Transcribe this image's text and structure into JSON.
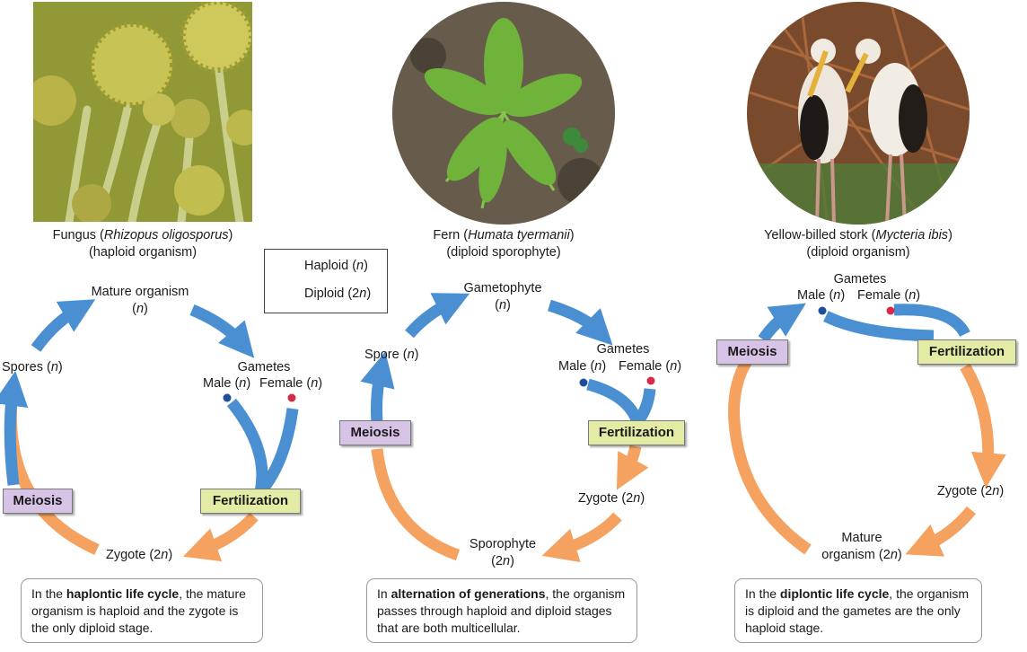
{
  "colors": {
    "haploid": "#4a8fd2",
    "diploid": "#f5a15f",
    "meiosis_bg": "#d7c3e6",
    "fertilization_bg": "#e3eba4",
    "male_dot": "#1f4e9b",
    "female_dot": "#d62848"
  },
  "legend": {
    "haploid": {
      "label": "Haploid (",
      "var": "n",
      "close": ")"
    },
    "diploid": {
      "label": "Diploid (2",
      "var": "n",
      "close": ")"
    }
  },
  "panels": {
    "fungus": {
      "caption_pre": "Fungus (",
      "caption_species": "Rhizopus oligosporus",
      "caption_post": ")",
      "caption_line2": "(haploid organism)",
      "mature": "Mature organism",
      "mature_n": "n",
      "gametes": "Gametes",
      "male": "Male (",
      "male_n": "n",
      "female": "Female (",
      "female_n": "n",
      "spores": "Spores (",
      "spores_n": "n",
      "zygote": "Zygote (2",
      "zygote_n": "n",
      "meiosis": "Meiosis",
      "fertilization": "Fertilization",
      "note_pre": "In the ",
      "note_bold": "haplontic life cycle",
      "note_post": ", the mature organism is haploid and the zygote is the only diploid stage."
    },
    "fern": {
      "caption_pre": "Fern (",
      "caption_species": "Humata tyermanii",
      "caption_post": ")",
      "caption_line2": "(diploid sporophyte)",
      "gametophyte": "Gametophyte",
      "gametophyte_n": "n",
      "gametes": "Gametes",
      "male": "Male (",
      "male_n": "n",
      "female": "Female (",
      "female_n": "n",
      "spore": "Spore (",
      "spore_n": "n",
      "zygote": "Zygote (2",
      "zygote_n": "n",
      "sporophyte": "Sporophyte",
      "sporophyte_n2": "(2",
      "sporophyte_n": "n",
      "meiosis": "Meiosis",
      "fertilization": "Fertilization",
      "note_pre": "In ",
      "note_bold": "alternation of generations",
      "note_post": ", the organism passes through haploid and diploid stages that are both multicellular."
    },
    "stork": {
      "caption_pre": "Yellow-billed stork (",
      "caption_species": "Mycteria ibis",
      "caption_post": ")",
      "caption_line2": "(diploid organism)",
      "gametes": "Gametes",
      "male": "Male (",
      "male_n": "n",
      "female": "Female (",
      "female_n": "n",
      "zygote": "Zygote (2",
      "zygote_n": "n",
      "mature1": "Mature",
      "mature2": "organism (2",
      "mature_n": "n",
      "meiosis": "Meiosis",
      "fertilization": "Fertilization",
      "note_pre": "In the ",
      "note_bold": "diplontic life cycle",
      "note_post": ", the organism is diploid and the gametes are the only haploid stage."
    }
  }
}
